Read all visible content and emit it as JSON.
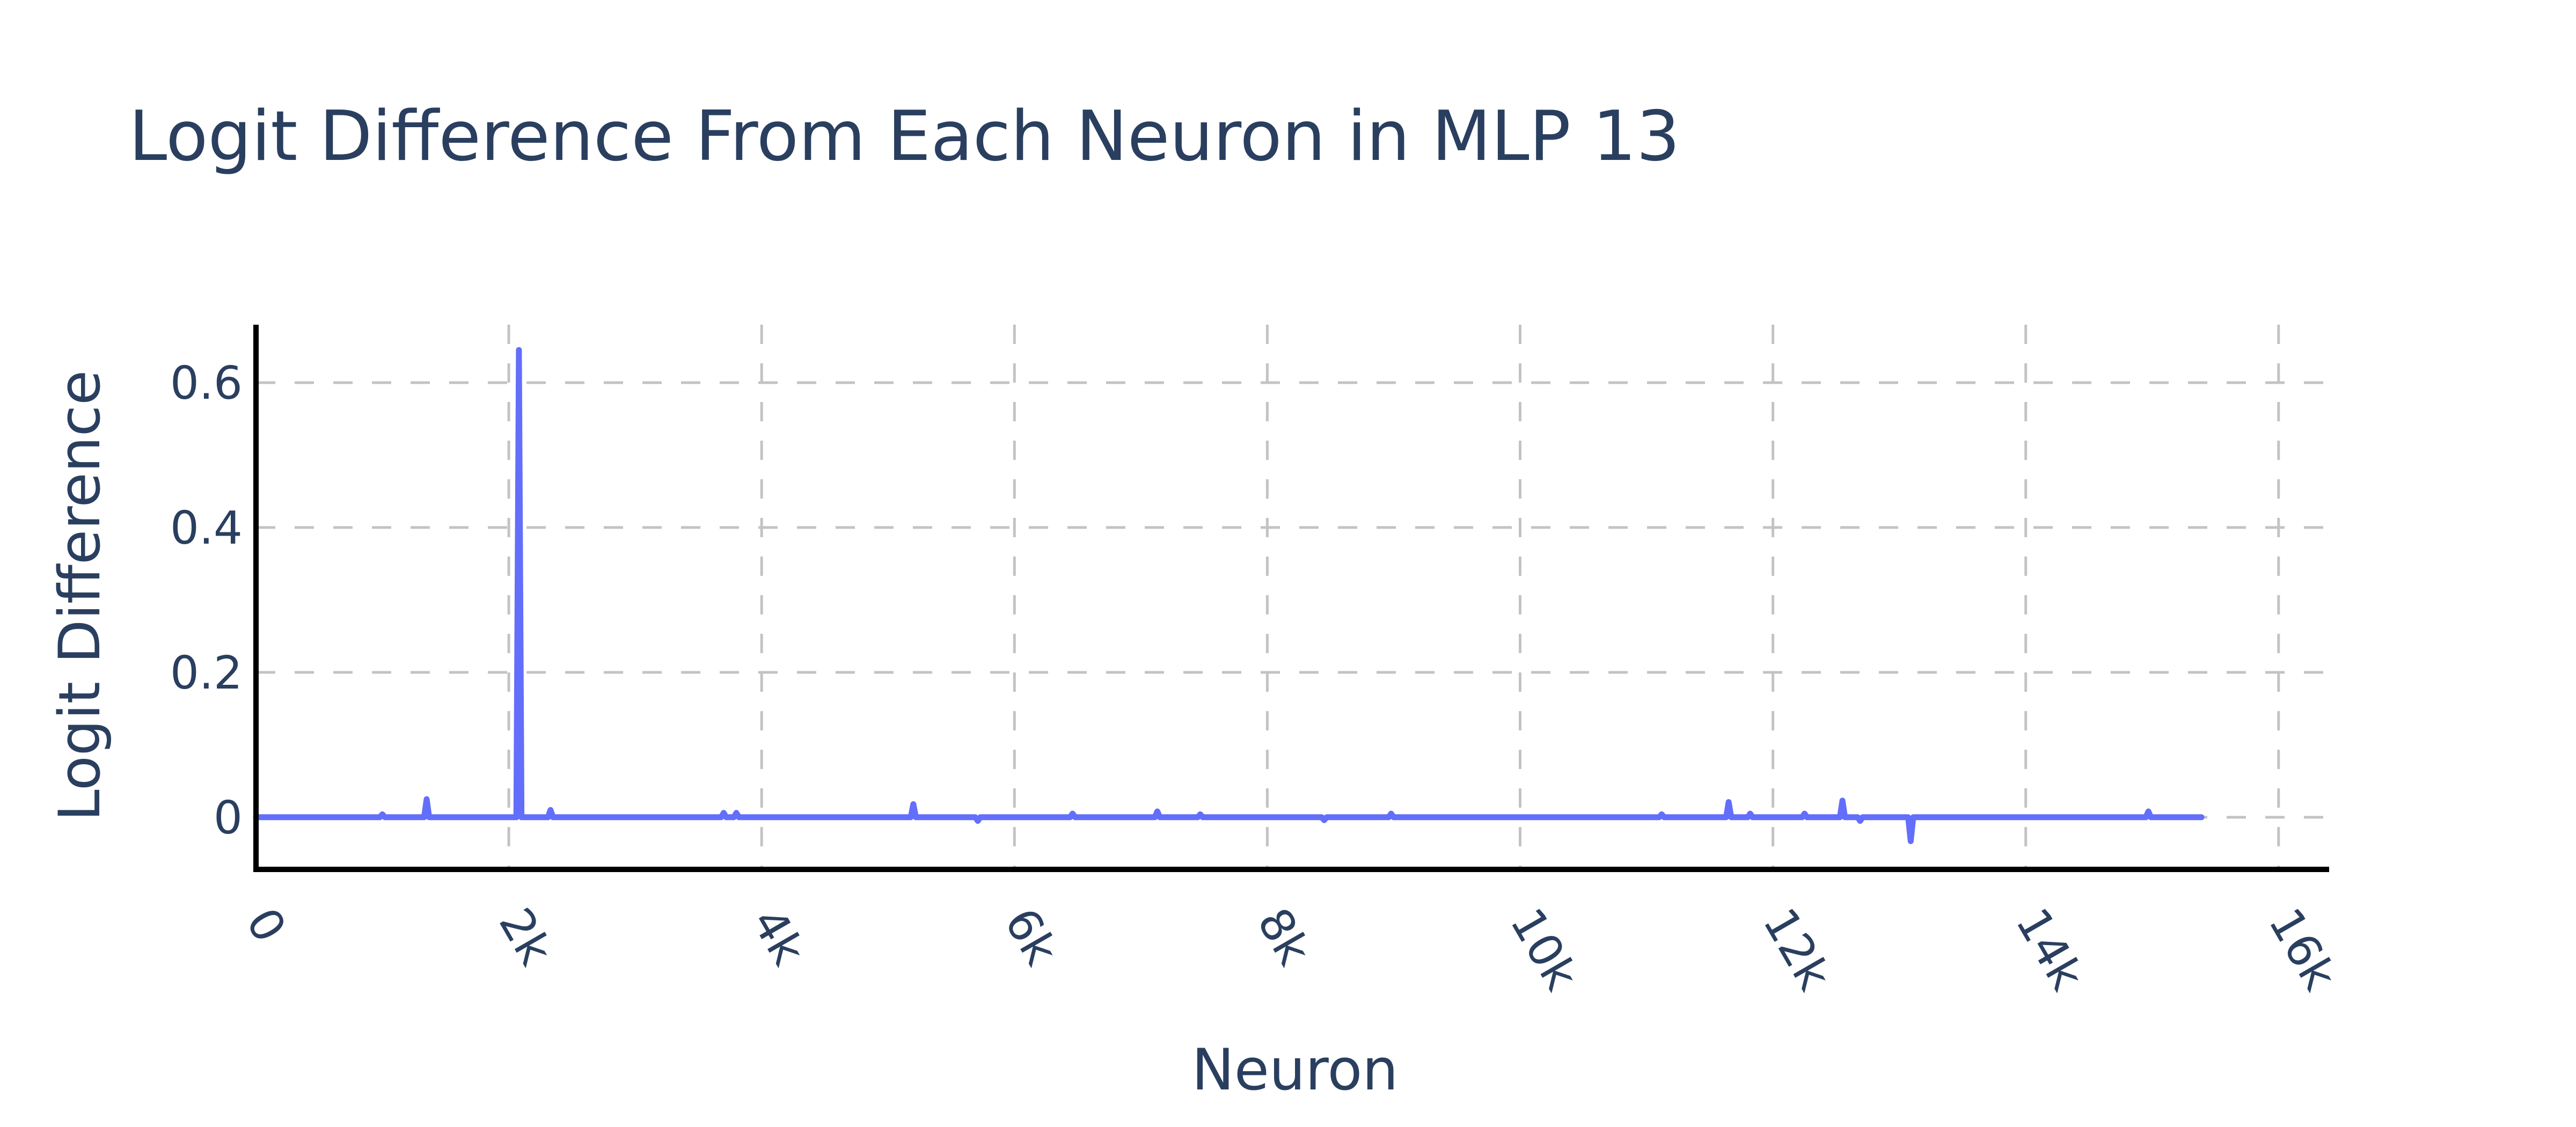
{
  "chart_data": {
    "type": "line",
    "title": "Logit Difference From Each Neuron in MLP 13",
    "xlabel": "Neuron",
    "ylabel": "Logit Difference",
    "x_range": [
      0,
      16400
    ],
    "y_range": [
      -0.072,
      0.68
    ],
    "x_ticks": [
      {
        "value": 0,
        "label": "0"
      },
      {
        "value": 2000,
        "label": "2k"
      },
      {
        "value": 4000,
        "label": "4k"
      },
      {
        "value": 6000,
        "label": "6k"
      },
      {
        "value": 8000,
        "label": "8k"
      },
      {
        "value": 10000,
        "label": "10k"
      },
      {
        "value": 12000,
        "label": "12k"
      },
      {
        "value": 14000,
        "label": "14k"
      },
      {
        "value": 16000,
        "label": "16k"
      }
    ],
    "y_ticks": [
      {
        "value": 0,
        "label": "0"
      },
      {
        "value": 0.2,
        "label": "0.2"
      },
      {
        "value": 0.4,
        "label": "0.4"
      },
      {
        "value": 0.6,
        "label": "0.6"
      }
    ],
    "x_tick_label_rotation": "slanted",
    "grid": true,
    "legend": "none",
    "series": [
      {
        "color": "#636efa",
        "points": [
          [
            0,
            0
          ],
          [
            980,
            0
          ],
          [
            1000,
            0.004
          ],
          [
            1020,
            0
          ],
          [
            1330,
            0
          ],
          [
            1350,
            0.025
          ],
          [
            1370,
            0
          ],
          [
            2060,
            0
          ],
          [
            2080,
            0.645
          ],
          [
            2100,
            0
          ],
          [
            2310,
            0
          ],
          [
            2330,
            0.01
          ],
          [
            2350,
            0
          ],
          [
            3680,
            0
          ],
          [
            3700,
            0.006
          ],
          [
            3720,
            0
          ],
          [
            3780,
            0
          ],
          [
            3800,
            0.006
          ],
          [
            3820,
            0
          ],
          [
            5180,
            0
          ],
          [
            5200,
            0.018
          ],
          [
            5220,
            0
          ],
          [
            5690,
            0
          ],
          [
            5710,
            -0.005
          ],
          [
            5730,
            0
          ],
          [
            6440,
            0
          ],
          [
            6460,
            0.005
          ],
          [
            6480,
            0
          ],
          [
            7110,
            0
          ],
          [
            7130,
            0.008
          ],
          [
            7150,
            0
          ],
          [
            7450,
            0
          ],
          [
            7470,
            0.004
          ],
          [
            7490,
            0
          ],
          [
            8430,
            0
          ],
          [
            8450,
            -0.004
          ],
          [
            8470,
            0
          ],
          [
            8960,
            0
          ],
          [
            8980,
            0.005
          ],
          [
            9000,
            0
          ],
          [
            11100,
            0
          ],
          [
            11120,
            0.004
          ],
          [
            11140,
            0
          ],
          [
            11630,
            0
          ],
          [
            11650,
            0.021
          ],
          [
            11670,
            0
          ],
          [
            11800,
            0
          ],
          [
            11820,
            0.005
          ],
          [
            11840,
            0
          ],
          [
            12230,
            0
          ],
          [
            12250,
            0.005
          ],
          [
            12270,
            0
          ],
          [
            12530,
            0
          ],
          [
            12550,
            0.023
          ],
          [
            12570,
            0
          ],
          [
            12670,
            0
          ],
          [
            12690,
            -0.005
          ],
          [
            12710,
            0
          ],
          [
            13070,
            0
          ],
          [
            13090,
            -0.033
          ],
          [
            13110,
            0
          ],
          [
            14950,
            0
          ],
          [
            14970,
            0.008
          ],
          [
            14990,
            0
          ],
          [
            15390,
            0
          ]
        ]
      }
    ]
  }
}
